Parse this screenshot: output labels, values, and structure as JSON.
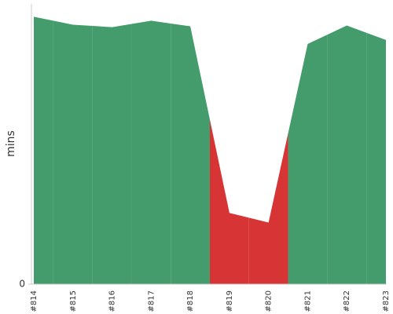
{
  "chart_data": {
    "type": "area",
    "y_label": "mins",
    "categories": [
      "#814",
      "#815",
      "#816",
      "#817",
      "#818",
      "#819",
      "#820",
      "#821",
      "#822",
      "#823"
    ],
    "values": [
      33.4,
      32.4,
      32.1,
      32.9,
      32.2,
      8.9,
      7.7,
      30.0,
      32.3,
      30.5
    ],
    "colors": [
      "#449b6c",
      "#449b6c",
      "#449b6c",
      "#449b6c",
      "#449b6c",
      "#d73535",
      "#d73535",
      "#449b6c",
      "#449b6c",
      "#449b6c"
    ],
    "ylim": [
      0,
      35
    ],
    "yticks": [
      0
    ]
  }
}
